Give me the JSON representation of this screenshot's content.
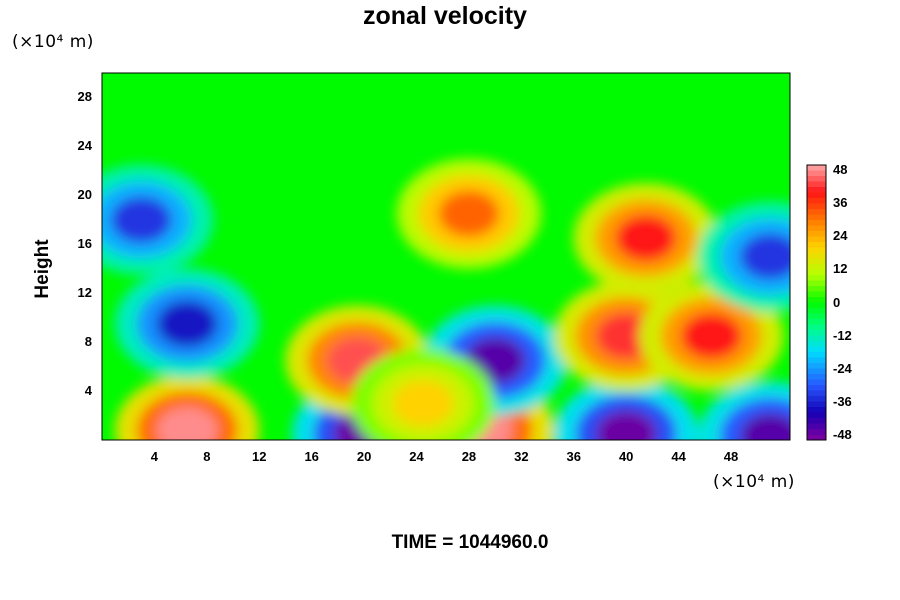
{
  "chart_data": {
    "type": "heatmap",
    "title": "zonal velocity",
    "ylabel": "Height",
    "xlabel": "",
    "x_unit": "(×10⁴ m)",
    "y_unit": "(×10⁴ m)",
    "xlim": [
      0,
      52.5
    ],
    "ylim": [
      0,
      30
    ],
    "x_ticks": [
      "4",
      "8",
      "12",
      "16",
      "20",
      "24",
      "28",
      "32",
      "36",
      "40",
      "44",
      "48"
    ],
    "y_ticks": [
      "4",
      "8",
      "12",
      "16",
      "20",
      "24",
      "28"
    ],
    "colorbar": {
      "ticks": [
        "48",
        "36",
        "24",
        "12",
        "0",
        "-12",
        "-24",
        "-36",
        "-48"
      ],
      "range": [
        -50,
        50
      ]
    },
    "background_value": 0,
    "features": [
      {
        "x": 6.5,
        "y": 0.8,
        "value": 48
      },
      {
        "x": 20,
        "y": 0.5,
        "value": -48
      },
      {
        "x": 29,
        "y": 0.8,
        "value": 48
      },
      {
        "x": 40,
        "y": 0.5,
        "value": -48
      },
      {
        "x": 51,
        "y": 0.3,
        "value": -46
      },
      {
        "x": 6.5,
        "y": 9.5,
        "value": -38
      },
      {
        "x": 19.5,
        "y": 6.5,
        "value": 44
      },
      {
        "x": 30,
        "y": 6.5,
        "value": -46
      },
      {
        "x": 40,
        "y": 8.5,
        "value": 42
      },
      {
        "x": 46.5,
        "y": 8.5,
        "value": 40
      },
      {
        "x": 28,
        "y": 18.5,
        "value": 32
      },
      {
        "x": 41.5,
        "y": 16.5,
        "value": 40
      },
      {
        "x": 3,
        "y": 18,
        "value": -34
      },
      {
        "x": 51,
        "y": 15,
        "value": -34
      },
      {
        "x": 24.5,
        "y": 3,
        "value": 20
      }
    ],
    "footer_text": "TIME = 1044960.0"
  }
}
